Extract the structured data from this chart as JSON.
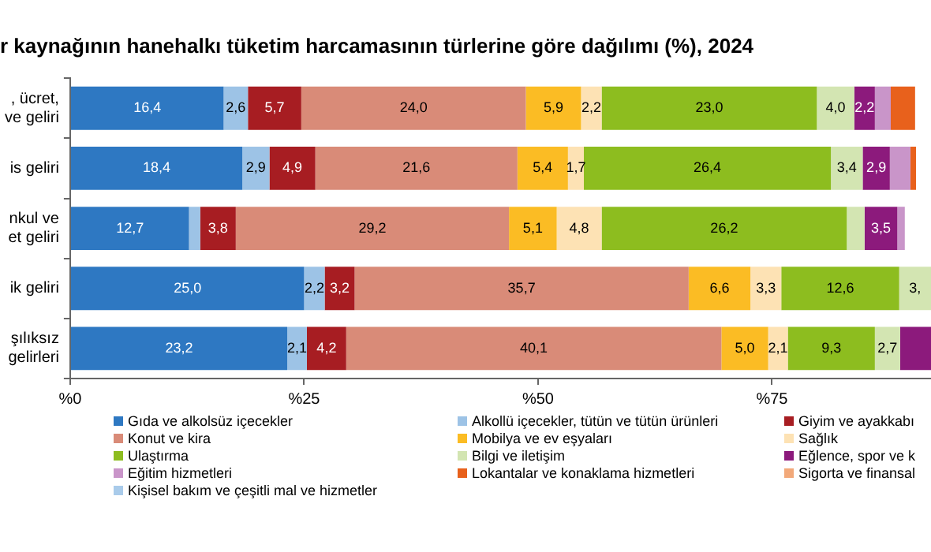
{
  "chart_data": {
    "type": "bar",
    "orientation": "horizontal",
    "stacked": true,
    "title": "r kaynağının hanehalkı tüketim harcamasının türlerine göre dağılımı (%), 2024",
    "categories": [
      ", ücret, ve geliri",
      "is geliri",
      "nkul ve et geliri",
      "ik geliri",
      "şılıksız gelirleri"
    ],
    "xlim": [
      0,
      92
    ],
    "xticks": [
      {
        "value": 0,
        "label": "%0"
      },
      {
        "value": 25,
        "label": "%25"
      },
      {
        "value": 50,
        "label": "%50"
      },
      {
        "value": 75,
        "label": "%75"
      }
    ],
    "grid": false,
    "legend": "bottom",
    "series": [
      {
        "name": "Gıda ve alkolsüz içecekler",
        "color": "#2e78c2",
        "values": [
          16.4,
          18.4,
          12.7,
          25.0,
          23.2
        ],
        "value_labels": [
          "16,4",
          "18,4",
          "12,7",
          "25,0",
          "23,2"
        ]
      },
      {
        "name": "Alkollü içecekler, tütün ve tütün ürünleri",
        "color": "#9dc3e6",
        "values": [
          2.6,
          2.9,
          1.2,
          2.2,
          2.1
        ],
        "value_labels": [
          "2,6",
          "2,9",
          null,
          "2,2",
          "2,1"
        ]
      },
      {
        "name": "Giyim ve ayakkabı",
        "color": "#a71d22",
        "values": [
          5.7,
          4.9,
          3.8,
          3.2,
          4.2
        ],
        "value_labels": [
          "5,7",
          "4,9",
          "3,8",
          "3,2",
          "4,2"
        ]
      },
      {
        "name": "Konut ve kira",
        "color": "#d98b78",
        "values": [
          24.0,
          21.6,
          29.2,
          35.7,
          40.1
        ],
        "value_labels": [
          "24,0",
          "21,6",
          "29,2",
          "35,7",
          "40,1"
        ]
      },
      {
        "name": "Mobilya ve ev eşyaları",
        "color": "#fbbc24",
        "values": [
          5.9,
          5.4,
          5.1,
          6.6,
          5.0
        ],
        "value_labels": [
          "5,9",
          "5,4",
          "5,1",
          "6,6",
          "5,0"
        ]
      },
      {
        "name": "Sağlık",
        "color": "#fde2b4",
        "values": [
          2.2,
          1.7,
          4.8,
          3.3,
          2.1
        ],
        "value_labels": [
          "2,2",
          "1,7",
          "4,8",
          "3,3",
          "2,1"
        ]
      },
      {
        "name": "Ulaştırma",
        "color": "#8dbd1f",
        "values": [
          23.0,
          26.4,
          26.2,
          12.6,
          9.3
        ],
        "value_labels": [
          "23,0",
          "26,4",
          "26,2",
          "12,6",
          "9,3"
        ]
      },
      {
        "name": "Bilgi ve iletişim",
        "color": "#d3e5b2",
        "values": [
          4.0,
          3.4,
          1.9,
          3.4,
          2.7
        ],
        "value_labels": [
          "4,0",
          "3,4",
          null,
          "3,",
          "2,7"
        ]
      },
      {
        "name": "Eğlence, spor ve k",
        "color": "#8c1a7c",
        "values": [
          2.2,
          2.9,
          3.5,
          null,
          3.3
        ],
        "value_labels": [
          "2,2",
          "2,9",
          "3,5",
          null,
          null
        ]
      },
      {
        "name": "Eğitim hizmetleri",
        "color": "#c995c9",
        "values": [
          1.7,
          2.2,
          0.8,
          null,
          null
        ],
        "value_labels": [
          null,
          null,
          null,
          null,
          null
        ]
      },
      {
        "name": "Lokantalar ve konaklama hizmetleri",
        "color": "#e8611c",
        "values": [
          2.6,
          0.6,
          null,
          null,
          null
        ],
        "value_labels": [
          null,
          null,
          null,
          null,
          null
        ]
      },
      {
        "name": "Sigorta ve finansal",
        "color": "#f2a97a",
        "values": [
          null,
          null,
          null,
          null,
          null
        ]
      },
      {
        "name": "Kişisel bakım ve çeşitli mal ve hizmetler",
        "color": "#a9cbea",
        "values": [
          null,
          null,
          null,
          null,
          null
        ]
      }
    ]
  }
}
